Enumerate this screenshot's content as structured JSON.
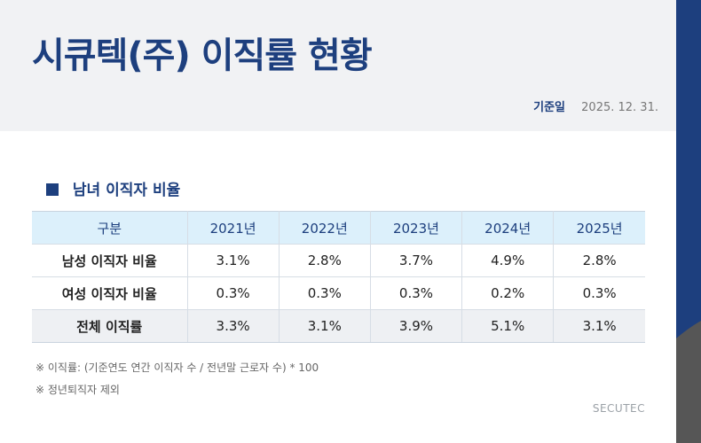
{
  "title": "시큐텍(주) 이직률 현황",
  "date": {
    "label": "기준일",
    "value": "2025. 12. 31."
  },
  "section": {
    "title": "남녀 이직자 비율"
  },
  "table": {
    "headers": [
      "구분",
      "2021년",
      "2022년",
      "2023년",
      "2024년",
      "2025년"
    ],
    "rows": [
      {
        "label": "남성 이직자 비율",
        "values": [
          "3.1%",
          "2.8%",
          "3.7%",
          "4.9%",
          "2.8%"
        ]
      },
      {
        "label": "여성 이직자 비율",
        "values": [
          "0.3%",
          "0.3%",
          "0.3%",
          "0.2%",
          "0.3%"
        ]
      },
      {
        "label": "전체 이직률",
        "values": [
          "3.3%",
          "3.1%",
          "3.9%",
          "5.1%",
          "3.1%"
        ]
      }
    ]
  },
  "notes": [
    "※ 이직률: (기준연도 연간 이직자 수 / 전년말 근로자 수) * 100",
    "※ 정년퇴직자 제외"
  ],
  "brand": "SECUTEC",
  "colors": {
    "primary": "#1d3f7e",
    "header_bg": "#dcf0fb",
    "side_gray": "#565656"
  }
}
